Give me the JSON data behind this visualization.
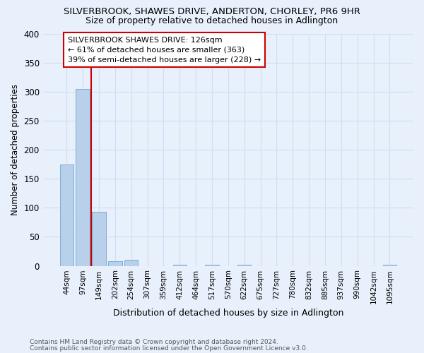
{
  "title1": "SILVERBROOK, SHAWES DRIVE, ANDERTON, CHORLEY, PR6 9HR",
  "title2": "Size of property relative to detached houses in Adlington",
  "xlabel": "Distribution of detached houses by size in Adlington",
  "ylabel": "Number of detached properties",
  "footnote1": "Contains HM Land Registry data © Crown copyright and database right 2024.",
  "footnote2": "Contains public sector information licensed under the Open Government Licence v3.0.",
  "bin_labels": [
    "44sqm",
    "97sqm",
    "149sqm",
    "202sqm",
    "254sqm",
    "307sqm",
    "359sqm",
    "412sqm",
    "464sqm",
    "517sqm",
    "570sqm",
    "622sqm",
    "675sqm",
    "727sqm",
    "780sqm",
    "832sqm",
    "885sqm",
    "937sqm",
    "990sqm",
    "1042sqm",
    "1095sqm"
  ],
  "bar_heights": [
    175,
    305,
    93,
    8,
    10,
    0,
    0,
    2,
    0,
    2,
    0,
    2,
    0,
    0,
    0,
    0,
    0,
    0,
    0,
    0,
    2
  ],
  "bar_color": "#b8d0ea",
  "bar_edge_color": "#7aaed6",
  "background_color": "#e8f0fb",
  "grid_color": "#d0ddf5",
  "vline_color": "#cc0000",
  "annotation_text": "SILVERBROOK SHAWES DRIVE: 126sqm\n← 61% of detached houses are smaller (363)\n39% of semi-detached houses are larger (228) →",
  "annotation_box_color": "#ffffff",
  "annotation_box_edge": "#cc0000",
  "ylim": [
    0,
    400
  ],
  "yticks": [
    0,
    50,
    100,
    150,
    200,
    250,
    300,
    350,
    400
  ]
}
